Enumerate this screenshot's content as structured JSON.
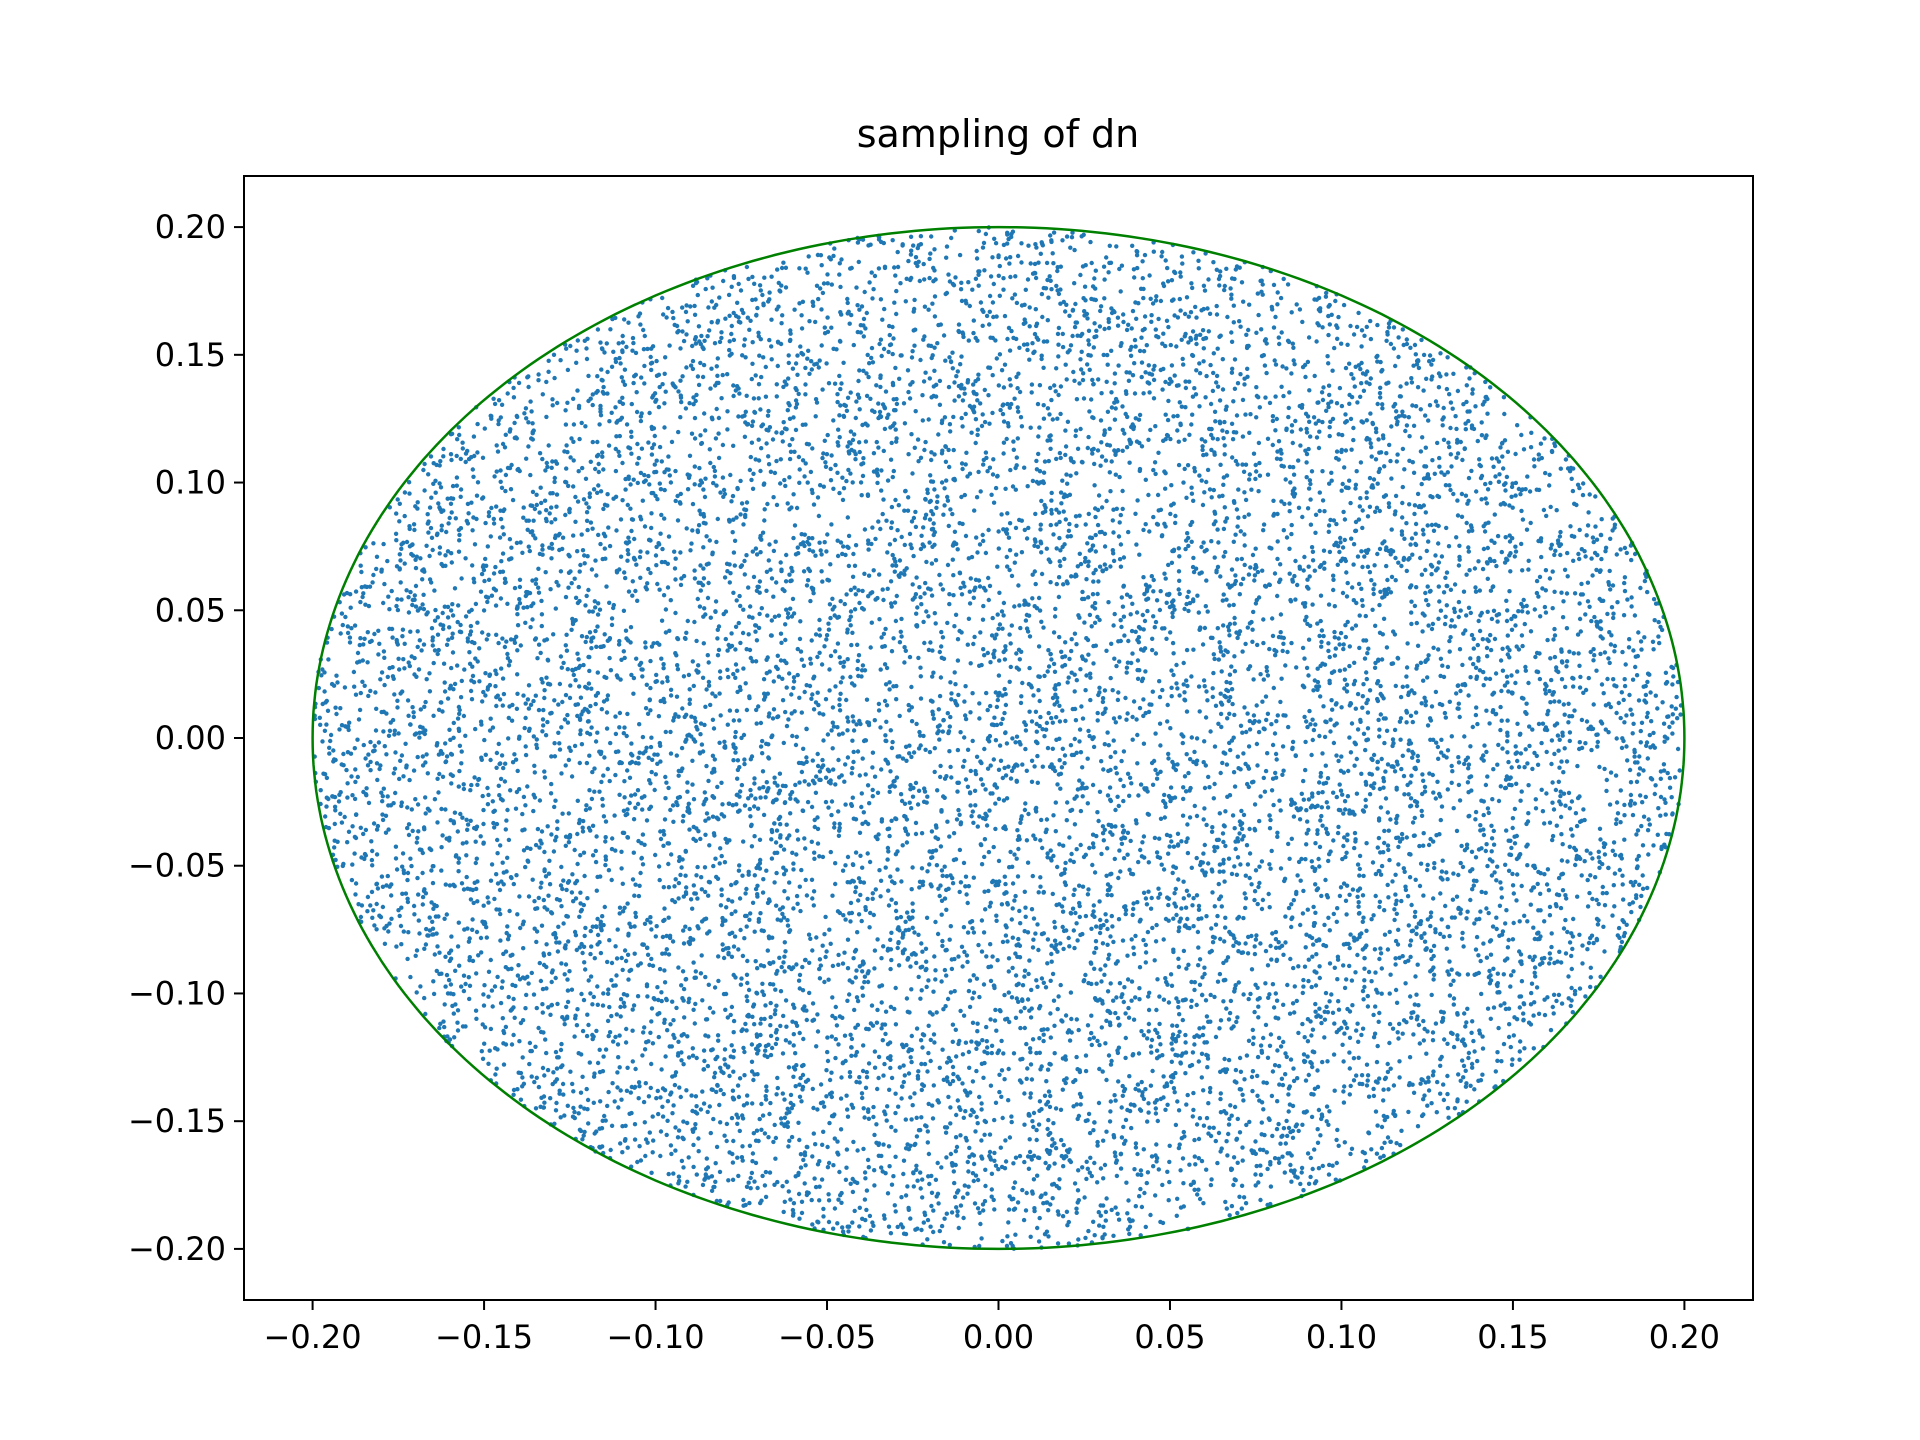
{
  "chart_data": {
    "type": "scatter",
    "title": "sampling of dn",
    "xlabel": "",
    "ylabel": "",
    "xlim": [
      -0.22,
      0.22
    ],
    "ylim": [
      -0.22,
      0.22
    ],
    "grid": false,
    "xticks": [
      -0.2,
      -0.15,
      -0.1,
      -0.05,
      0.0,
      0.05,
      0.1,
      0.15,
      0.2
    ],
    "yticks": [
      -0.2,
      -0.15,
      -0.1,
      -0.05,
      0.0,
      0.05,
      0.1,
      0.15,
      0.2
    ],
    "xtick_labels": [
      "−0.20",
      "−0.15",
      "−0.10",
      "−0.05",
      "0.00",
      "0.05",
      "0.10",
      "0.15",
      "0.20"
    ],
    "ytick_labels": [
      "−0.20",
      "−0.15",
      "−0.10",
      "−0.05",
      "0.00",
      "0.05",
      "0.10",
      "0.15",
      "0.20"
    ],
    "scatter": {
      "distribution": "uniform in disk",
      "center": [
        0.0,
        0.0
      ],
      "radius": 0.2,
      "n_points": 12000,
      "color": "#1f77b4"
    },
    "boundary_circle": {
      "center": [
        0.0,
        0.0
      ],
      "radius": 0.2,
      "color": "#008000"
    }
  }
}
